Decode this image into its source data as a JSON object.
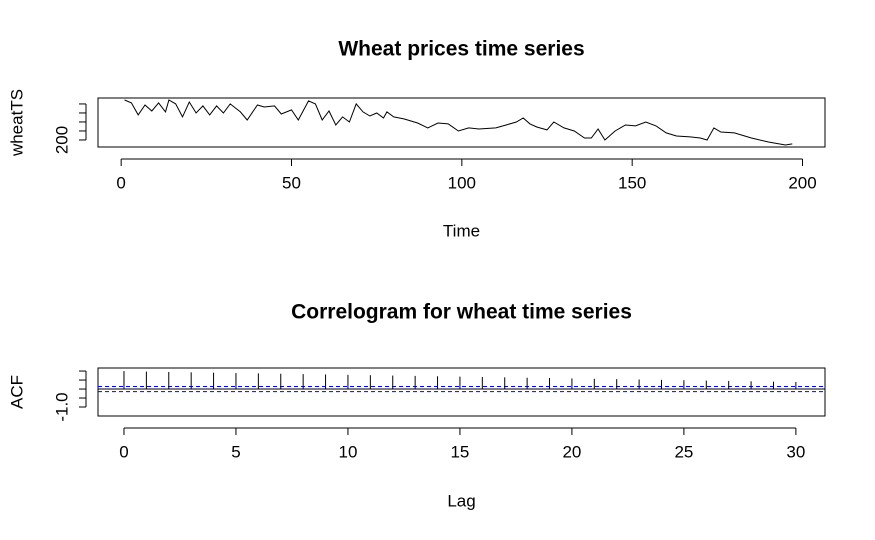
{
  "chart_data": [
    {
      "type": "line",
      "title": "Wheat prices time series",
      "xlabel": "Time",
      "ylabel": "wheatTS",
      "color": "#000000",
      "x": [
        1,
        3,
        5,
        7,
        9,
        11,
        13,
        14,
        16,
        18,
        20,
        22,
        24,
        26,
        28,
        30,
        32,
        35,
        37,
        40,
        42,
        45,
        47,
        50,
        52,
        55,
        57,
        59,
        61,
        63,
        65,
        67,
        69,
        71,
        73,
        75,
        77,
        78,
        80,
        83,
        87,
        90,
        93,
        96,
        99,
        102,
        105,
        110,
        113,
        116,
        118,
        120,
        122,
        125,
        127,
        130,
        133,
        136,
        138,
        140,
        142,
        145,
        148,
        151,
        154,
        157,
        160,
        163,
        167,
        170,
        172,
        174,
        176,
        180,
        185,
        190,
        195,
        197
      ],
      "values": [
        422,
        406,
        339,
        394,
        361,
        406,
        356,
        422,
        400,
        328,
        411,
        350,
        389,
        339,
        389,
        350,
        400,
        356,
        311,
        394,
        383,
        389,
        344,
        367,
        311,
        417,
        400,
        311,
        361,
        283,
        328,
        300,
        400,
        356,
        333,
        350,
        322,
        356,
        328,
        317,
        294,
        267,
        294,
        289,
        250,
        267,
        261,
        267,
        283,
        300,
        322,
        289,
        272,
        256,
        300,
        267,
        250,
        211,
        211,
        261,
        200,
        250,
        283,
        278,
        300,
        278,
        239,
        222,
        217,
        211,
        200,
        267,
        244,
        239,
        211,
        189,
        172,
        178
      ],
      "xlim": [
        -6.8,
        206.6
      ],
      "xticks": [
        0,
        50,
        100,
        150,
        200
      ],
      "ylim": [
        161,
        433
      ],
      "yticks": [
        200
      ],
      "yminor_ticks": [
        250,
        300,
        350,
        400
      ]
    },
    {
      "type": "acf",
      "title": "Correlogram for wheat time series",
      "xlabel": "Lag",
      "ylabel": "ACF",
      "color": "#000000",
      "x": [
        0,
        1,
        2,
        3,
        4,
        5,
        6,
        7,
        8,
        9,
        10,
        11,
        12,
        13,
        14,
        15,
        16,
        17,
        18,
        19,
        20,
        21,
        22,
        23,
        24,
        25,
        26,
        27,
        28,
        29,
        30
      ],
      "values": [
        1,
        0.97,
        0.95,
        0.93,
        0.91,
        0.89,
        0.87,
        0.85,
        0.83,
        0.81,
        0.79,
        0.77,
        0.75,
        0.73,
        0.71,
        0.69,
        0.67,
        0.65,
        0.63,
        0.61,
        0.59,
        0.57,
        0.55,
        0.53,
        0.51,
        0.49,
        0.47,
        0.45,
        0.43,
        0.41,
        0.39
      ],
      "ci_bounds": [
        -0.142,
        0.142
      ],
      "ci_color": "#0000ff",
      "xlim": [
        -1.16,
        31.3
      ],
      "xticks": [
        0,
        5,
        10,
        15,
        20,
        25,
        30
      ],
      "ylim": [
        -1.5,
        1.17
      ],
      "yticks": [
        {
          "value": -1,
          "label": "-1.0"
        }
      ],
      "yminor_ticks": [
        -0.5,
        0,
        0.5,
        1
      ]
    }
  ]
}
